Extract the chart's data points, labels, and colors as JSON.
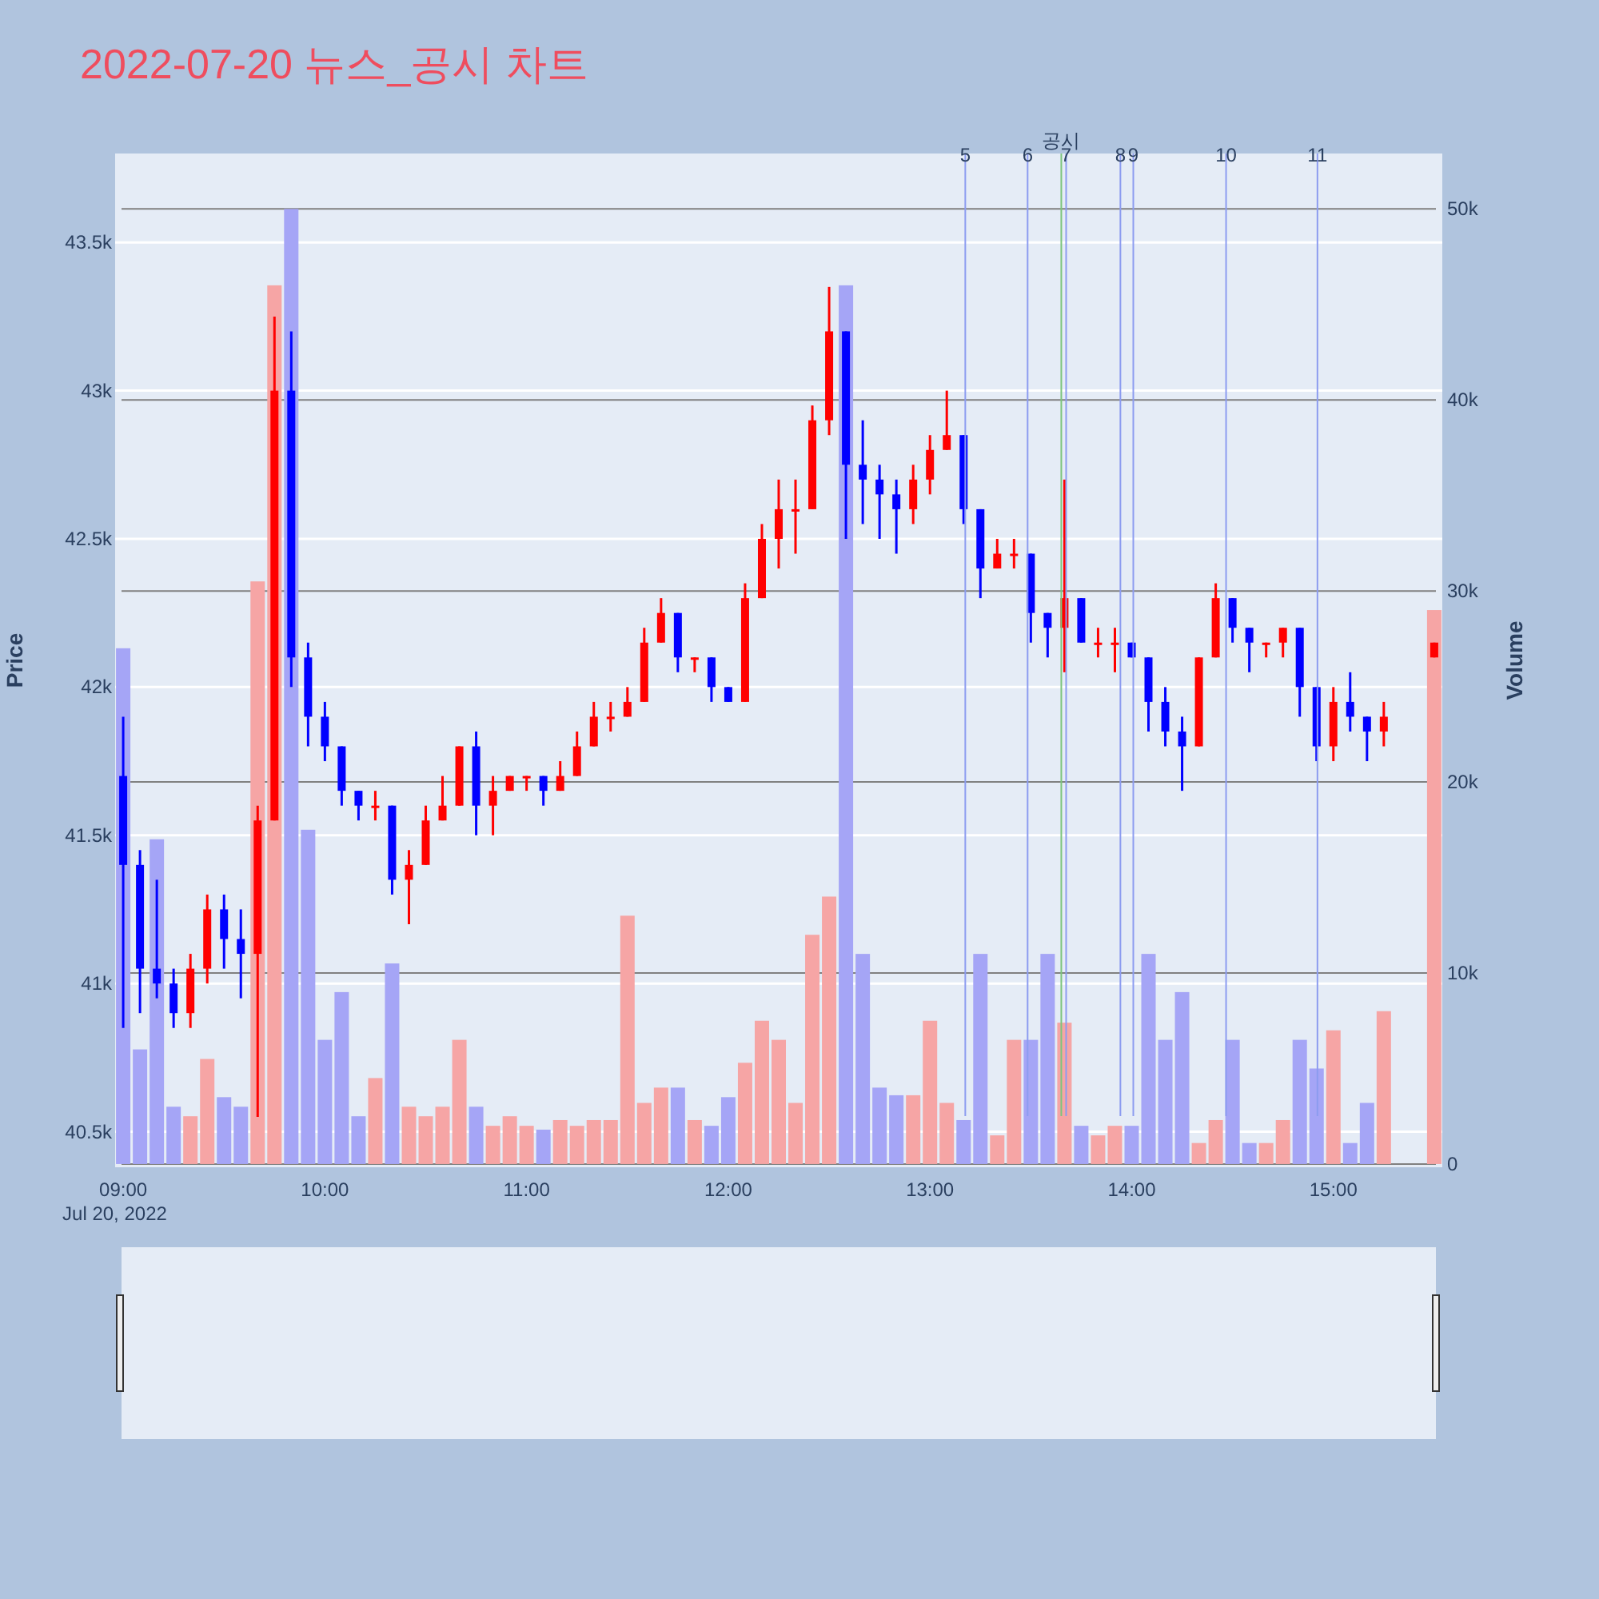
{
  "chart_data": {
    "type": "candlestick",
    "title": "2022-07-20 뉴스_공시 차트",
    "ylabel": "Price",
    "y2label": "Volume",
    "annotations": [
      "Jul 20, 2022",
      {
        "text": "5",
        "x": 13.175
      },
      {
        "text": "6",
        "x": 13.484
      },
      {
        "text": "7",
        "x": 13.675
      },
      {
        "text": "8",
        "x": 13.944
      },
      {
        "text": "9",
        "x": 14.008
      },
      {
        "text": "10",
        "x": 14.468
      },
      {
        "text": "11",
        "x": 14.921
      }
    ],
    "x": [
      9.0,
      9.0833,
      9.1667,
      9.25,
      9.3333,
      9.4167,
      9.5,
      9.5833,
      9.6667,
      9.75,
      9.8333,
      9.9167,
      10.0,
      10.0833,
      10.1667,
      10.25,
      10.3333,
      10.4167,
      10.5,
      10.5833,
      10.6667,
      10.75,
      10.8333,
      10.9167,
      11.0,
      11.0833,
      11.1667,
      11.25,
      11.3333,
      11.4167,
      11.5,
      11.5833,
      11.6667,
      11.75,
      11.8333,
      11.9167,
      12.0,
      12.0833,
      12.1667,
      12.25,
      12.3333,
      12.4167,
      12.5,
      12.5833,
      12.6667,
      12.75,
      12.8333,
      12.9167,
      13.0,
      13.0833,
      13.1667,
      13.25,
      13.3333,
      13.4167,
      13.5,
      13.5833,
      13.6667,
      13.75,
      13.8333,
      13.9167,
      14.0,
      14.0833,
      14.1667,
      14.25,
      14.3333,
      14.4167,
      14.5,
      14.5833,
      14.6667,
      14.75,
      14.8333,
      14.9167,
      15.0,
      15.0833,
      15.1667,
      15.25,
      15.5
    ],
    "series": [
      {
        "colors": [
          "#0000ff",
          "#0000ff",
          "#0000ff",
          "#0000ff",
          "#ff0000",
          "#ff0000",
          "#0000ff",
          "#0000ff",
          "#ff0000",
          "#ff0000",
          "#0000ff",
          "#0000ff",
          "#0000ff",
          "#0000ff",
          "#0000ff",
          "#ff0000",
          "#0000ff",
          "#ff0000",
          "#ff0000",
          "#ff0000",
          "#ff0000",
          "#0000ff",
          "#ff0000",
          "#ff0000",
          "#ff0000",
          "#0000ff",
          "#ff0000",
          "#ff0000",
          "#ff0000",
          "#ff0000",
          "#ff0000",
          "#ff0000",
          "#ff0000",
          "#0000ff",
          "#ff0000",
          "#0000ff",
          "#0000ff",
          "#ff0000",
          "#ff0000",
          "#ff0000",
          "#ff0000",
          "#ff0000",
          "#ff0000",
          "#0000ff",
          "#0000ff",
          "#0000ff",
          "#0000ff",
          "#ff0000",
          "#ff0000",
          "#ff0000",
          "#0000ff",
          "#0000ff",
          "#ff0000",
          "#ff0000",
          "#0000ff",
          "#0000ff",
          "#ff0000",
          "#0000ff",
          "#ff0000",
          "#ff0000",
          "#0000ff",
          "#0000ff",
          "#0000ff",
          "#0000ff",
          "#ff0000",
          "#ff0000",
          "#0000ff",
          "#0000ff",
          "#ff0000",
          "#ff0000",
          "#0000ff",
          "#0000ff",
          "#ff0000",
          "#0000ff",
          "#0000ff",
          "#ff0000",
          "#ff0000"
        ],
        "ohlc": [
          [
            41700,
            41900,
            40850,
            41400
          ],
          [
            41400,
            41450,
            40900,
            41050
          ],
          [
            41050,
            41350,
            40950,
            41000
          ],
          [
            41000,
            41050,
            40850,
            40900
          ],
          [
            40900,
            41100,
            40850,
            41050
          ],
          [
            41050,
            41300,
            41000,
            41250
          ],
          [
            41250,
            41300,
            41050,
            41150
          ],
          [
            41150,
            41250,
            40950,
            41100
          ],
          [
            41100,
            41600,
            40550,
            41550
          ],
          [
            41550,
            43250,
            41550,
            43000
          ],
          [
            43000,
            43200,
            42000,
            42100
          ],
          [
            42100,
            42150,
            41800,
            41900
          ],
          [
            41900,
            41950,
            41750,
            41800
          ],
          [
            41800,
            41800,
            41600,
            41650
          ],
          [
            41650,
            41650,
            41550,
            41600
          ],
          [
            41600,
            41650,
            41550,
            41600
          ],
          [
            41600,
            41600,
            41300,
            41350
          ],
          [
            41350,
            41450,
            41200,
            41400
          ],
          [
            41400,
            41600,
            41400,
            41550
          ],
          [
            41550,
            41700,
            41550,
            41600
          ],
          [
            41600,
            41800,
            41600,
            41800
          ],
          [
            41800,
            41850,
            41500,
            41600
          ],
          [
            41600,
            41700,
            41500,
            41650
          ],
          [
            41650,
            41700,
            41650,
            41700
          ],
          [
            41700,
            41700,
            41650,
            41700
          ],
          [
            41700,
            41700,
            41600,
            41650
          ],
          [
            41650,
            41750,
            41650,
            41700
          ],
          [
            41700,
            41850,
            41700,
            41800
          ],
          [
            41800,
            41950,
            41800,
            41900
          ],
          [
            41900,
            41950,
            41850,
            41900
          ],
          [
            41900,
            42000,
            41900,
            41950
          ],
          [
            41950,
            42200,
            41950,
            42150
          ],
          [
            42150,
            42300,
            42150,
            42250
          ],
          [
            42250,
            42250,
            42050,
            42100
          ],
          [
            42100,
            42100,
            42050,
            42100
          ],
          [
            42100,
            42100,
            41950,
            42000
          ],
          [
            42000,
            42000,
            41950,
            41950
          ],
          [
            41950,
            42350,
            41950,
            42300
          ],
          [
            42300,
            42550,
            42300,
            42500
          ],
          [
            42500,
            42700,
            42400,
            42600
          ],
          [
            42600,
            42700,
            42450,
            42600
          ],
          [
            42600,
            42950,
            42600,
            42900
          ],
          [
            42900,
            43350,
            42850,
            43200
          ],
          [
            43200,
            43200,
            42500,
            42750
          ],
          [
            42750,
            42900,
            42550,
            42700
          ],
          [
            42700,
            42750,
            42500,
            42650
          ],
          [
            42650,
            42700,
            42450,
            42600
          ],
          [
            42600,
            42750,
            42550,
            42700
          ],
          [
            42700,
            42850,
            42650,
            42800
          ],
          [
            42800,
            43000,
            42800,
            42850
          ],
          [
            42850,
            42850,
            42550,
            42600
          ],
          [
            42600,
            42600,
            42300,
            42400
          ],
          [
            42400,
            42500,
            42400,
            42450
          ],
          [
            42450,
            42500,
            42400,
            42450
          ],
          [
            42450,
            42450,
            42150,
            42250
          ],
          [
            42250,
            42250,
            42100,
            42200
          ],
          [
            42200,
            42700,
            42050,
            42300
          ],
          [
            42300,
            42300,
            42150,
            42150
          ],
          [
            42150,
            42200,
            42100,
            42150
          ],
          [
            42150,
            42200,
            42050,
            42150
          ],
          [
            42150,
            42150,
            42100,
            42100
          ],
          [
            42100,
            42100,
            41850,
            41950
          ],
          [
            41950,
            42000,
            41800,
            41850
          ],
          [
            41850,
            41900,
            41650,
            41800
          ],
          [
            41800,
            42100,
            41800,
            42100
          ],
          [
            42100,
            42350,
            42100,
            42300
          ],
          [
            42300,
            42300,
            42150,
            42200
          ],
          [
            42200,
            42200,
            42050,
            42150
          ],
          [
            42150,
            42150,
            42100,
            42150
          ],
          [
            42150,
            42200,
            42100,
            42200
          ],
          [
            42200,
            42200,
            41900,
            42000
          ],
          [
            42000,
            42000,
            41750,
            41800
          ],
          [
            41800,
            42000,
            41750,
            41950
          ],
          [
            41950,
            42050,
            41850,
            41900
          ],
          [
            41900,
            41900,
            41750,
            41850
          ],
          [
            41850,
            41950,
            41800,
            41900
          ],
          [
            42100,
            42150,
            42100,
            42150
          ]
        ]
      },
      {
        "type": "bar",
        "axis": "y2",
        "colors": [
          "#a5a5f6",
          "#a5a5f6",
          "#a5a5f6",
          "#a5a5f6",
          "#f6a5a5",
          "#f6a5a5",
          "#a5a5f6",
          "#a5a5f6",
          "#f6a5a5",
          "#f6a5a5",
          "#a5a5f6",
          "#a5a5f6",
          "#a5a5f6",
          "#a5a5f6",
          "#a5a5f6",
          "#f6a5a5",
          "#a5a5f6",
          "#f6a5a5",
          "#f6a5a5",
          "#f6a5a5",
          "#f6a5a5",
          "#a5a5f6",
          "#f6a5a5",
          "#f6a5a5",
          "#f6a5a5",
          "#a5a5f6",
          "#f6a5a5",
          "#f6a5a5",
          "#f6a5a5",
          "#f6a5a5",
          "#f6a5a5",
          "#f6a5a5",
          "#f6a5a5",
          "#a5a5f6",
          "#f6a5a5",
          "#a5a5f6",
          "#a5a5f6",
          "#f6a5a5",
          "#f6a5a5",
          "#f6a5a5",
          "#f6a5a5",
          "#f6a5a5",
          "#f6a5a5",
          "#a5a5f6",
          "#a5a5f6",
          "#a5a5f6",
          "#a5a5f6",
          "#f6a5a5",
          "#f6a5a5",
          "#f6a5a5",
          "#a5a5f6",
          "#a5a5f6",
          "#f6a5a5",
          "#f6a5a5",
          "#a5a5f6",
          "#a5a5f6",
          "#f6a5a5",
          "#a5a5f6",
          "#f6a5a5",
          "#f6a5a5",
          "#a5a5f6",
          "#a5a5f6",
          "#a5a5f6",
          "#a5a5f6",
          "#f6a5a5",
          "#f6a5a5",
          "#a5a5f6",
          "#a5a5f6",
          "#f6a5a5",
          "#f6a5a5",
          "#a5a5f6",
          "#a5a5f6",
          "#f6a5a5",
          "#a5a5f6",
          "#a5a5f6",
          "#f6a5a5",
          "#f6a5a5"
        ],
        "values": [
          27000,
          6000,
          17000,
          3000,
          2500,
          5500,
          3500,
          3000,
          30500,
          46000,
          50000,
          17500,
          6500,
          9000,
          2500,
          4500,
          10500,
          3000,
          2500,
          3000,
          6500,
          3000,
          2000,
          2500,
          2000,
          1800,
          2300,
          2000,
          2300,
          2300,
          13000,
          3200,
          4000,
          4000,
          2300,
          2000,
          3500,
          5300,
          7500,
          6500,
          3200,
          12000,
          14000,
          46000,
          11000,
          4000,
          3600,
          3600,
          7500,
          3200,
          2300,
          11000,
          1500,
          6500,
          6500,
          11000,
          7400,
          2000,
          1500,
          2000,
          2000,
          11000,
          6500,
          9000,
          1100,
          2300,
          6500,
          1100,
          1100,
          2300,
          6500,
          5000,
          7000,
          1100,
          3200,
          8000,
          29000
        ]
      }
    ],
    "xlim": [
      8.96,
      15.54
    ],
    "ylim": [
      40380,
      43800
    ],
    "y2lim": [
      -170,
      52900
    ],
    "xticks": [
      {
        "value": 9,
        "label": "09:00"
      },
      {
        "value": 10,
        "label": "10:00"
      },
      {
        "value": 11,
        "label": "11:00"
      },
      {
        "value": 12,
        "label": "12:00"
      },
      {
        "value": 13,
        "label": "13:00"
      },
      {
        "value": 14,
        "label": "14:00"
      },
      {
        "value": 15,
        "label": "15:00"
      }
    ],
    "yticks": [
      {
        "value": 40500,
        "label": "40.5k"
      },
      {
        "value": 41000,
        "label": "41k"
      },
      {
        "value": 41500,
        "label": "41.5k"
      },
      {
        "value": 42000,
        "label": "42k"
      },
      {
        "value": 42500,
        "label": "42.5k"
      },
      {
        "value": 43000,
        "label": "43k"
      },
      {
        "value": 43500,
        "label": "43.5k"
      }
    ],
    "y2ticks": [
      0,
      {
        "value": 10000,
        "label": "10k"
      },
      {
        "value": 20000,
        "label": "20k"
      },
      {
        "value": 30000,
        "label": "30k"
      },
      {
        "value": 40000,
        "label": "40k"
      },
      {
        "value": 50000,
        "label": "50k"
      }
    ],
    "grid": true,
    "ref_lines": [
      {
        "axis": "x",
        "value": 13.175,
        "color": "#8c9cf0"
      },
      {
        "axis": "x",
        "value": 13.484,
        "color": "#8c9cf0"
      },
      {
        "axis": "x",
        "value": 13.651,
        "label": "공시",
        "color": "#7cc47c"
      },
      {
        "axis": "x",
        "value": 13.675,
        "color": "#8c9cf0"
      },
      {
        "axis": "x",
        "value": 13.944,
        "color": "#8c9cf0"
      },
      {
        "axis": "x",
        "value": 14.008,
        "color": "#8c9cf0"
      },
      {
        "axis": "x",
        "value": 14.468,
        "color": "#8c9cf0"
      },
      {
        "axis": "x",
        "value": 14.921,
        "color": "#8c9cf0"
      }
    ]
  }
}
